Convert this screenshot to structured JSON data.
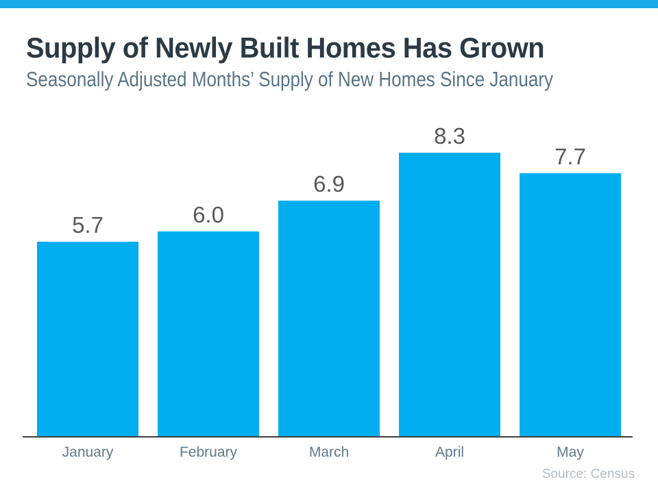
{
  "header": {
    "title": "Supply of Newly Built Homes Has Grown",
    "subtitle": "Seasonally Adjusted Months’ Supply of New Homes Since January"
  },
  "footer": {
    "source": "Source: Census"
  },
  "colors": {
    "top_stripe": "#1ba9ec",
    "bar": "#00aeef",
    "title_text": "#2b3a45",
    "subtitle_text": "#5a7486",
    "value_label": "#58595b",
    "month_label": "#60798a",
    "source_text": "#b4bec6",
    "axis_line": "#3f3f3f"
  },
  "chart_data": {
    "type": "bar",
    "categories": [
      "January",
      "February",
      "March",
      "April",
      "May"
    ],
    "values": [
      5.7,
      6.0,
      6.9,
      8.3,
      7.7
    ],
    "value_labels": [
      "5.7",
      "6.0",
      "6.9",
      "8.3",
      "7.7"
    ],
    "title": "Supply of Newly Built Homes Has Grown",
    "subtitle": "Seasonally Adjusted Months’ Supply of New Homes Since January",
    "xlabel": "",
    "ylabel": "",
    "ylim": [
      0,
      9
    ],
    "grid": false,
    "legend": false,
    "value_labels_shown": true,
    "bar_color": "#00aeef",
    "source": "Source: Census"
  }
}
